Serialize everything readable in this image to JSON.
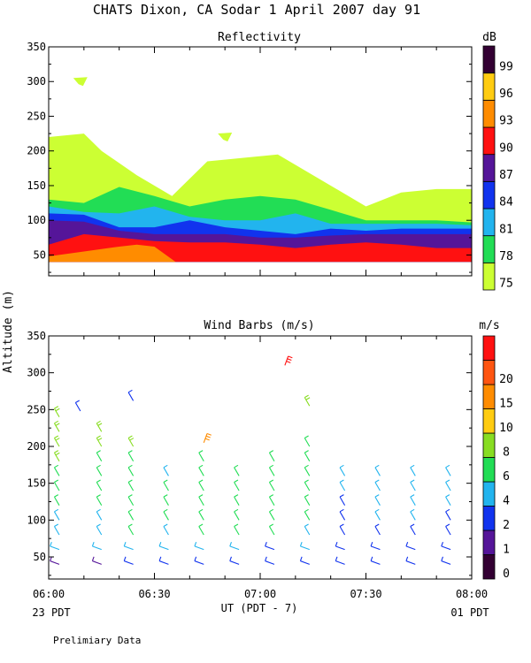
{
  "title": "CHATS Dixon, CA  Sodar   1 April 2007  day  91",
  "footer_note": "Prelimiary Data",
  "y_axis_label": "Altitude (m)",
  "x_axis": {
    "label": "UT  (PDT - 7)",
    "ticks": [
      "06:00",
      "06:30",
      "07:00",
      "07:30",
      "08:00"
    ],
    "left_sublabel": "23 PDT",
    "right_sublabel": "01 PDT"
  },
  "colors": {
    "dB": [
      "#ccff33",
      "#22dd55",
      "#22b4ee",
      "#1133ee",
      "#551599",
      "#ff1111",
      "#ff8c00",
      "#ffcc11",
      "#330033"
    ],
    "ms": [
      "#330033",
      "#551599",
      "#1133ee",
      "#22b4ee",
      "#22dd55",
      "#88dd22",
      "#ffcc11",
      "#ff8c00",
      "#ff5511",
      "#ff1111"
    ]
  },
  "chart_data": [
    {
      "type": "heatmap",
      "title": "Reflectivity",
      "colorbar_label": "dB",
      "colorbar_ticks": [
        "75",
        "78",
        "81",
        "84",
        "87",
        "90",
        "93",
        "96",
        "99"
      ],
      "xlim": [
        0,
        120
      ],
      "ylim": [
        20,
        350
      ],
      "yticks": [
        50,
        100,
        150,
        200,
        250,
        300,
        350
      ],
      "x_unit": "minutes after 06:00 UT",
      "levels": [
        {
          "dB": 75,
          "x": [
            0,
            10,
            15,
            25,
            35,
            45,
            55,
            65,
            80,
            90,
            100,
            110,
            120
          ],
          "top": [
            220,
            225,
            200,
            165,
            135,
            185,
            190,
            195,
            150,
            120,
            140,
            145,
            145
          ]
        },
        {
          "dB": 78,
          "x": [
            0,
            10,
            20,
            30,
            40,
            50,
            60,
            70,
            80,
            90,
            100,
            110,
            120
          ],
          "top": [
            130,
            125,
            148,
            135,
            120,
            130,
            135,
            130,
            115,
            100,
            100,
            100,
            97
          ]
        },
        {
          "dB": 81,
          "x": [
            0,
            10,
            20,
            30,
            40,
            50,
            60,
            70,
            80,
            90,
            100,
            110,
            120
          ],
          "top": [
            120,
            112,
            110,
            120,
            105,
            100,
            100,
            110,
            95,
            95,
            95,
            95,
            93
          ]
        },
        {
          "dB": 84,
          "x": [
            0,
            10,
            20,
            30,
            40,
            50,
            60,
            70,
            80,
            90,
            100,
            110,
            120
          ],
          "top": [
            110,
            108,
            90,
            90,
            100,
            90,
            85,
            80,
            88,
            85,
            88,
            88,
            88
          ]
        },
        {
          "dB": 87,
          "x": [
            0,
            10,
            20,
            30,
            40,
            50,
            60,
            70,
            80,
            90,
            100,
            110,
            120
          ],
          "top": [
            100,
            98,
            85,
            80,
            80,
            80,
            75,
            75,
            78,
            80,
            80,
            80,
            80
          ]
        },
        {
          "dB": 90,
          "x": [
            0,
            10,
            20,
            30,
            40,
            50,
            60,
            70,
            80,
            90,
            100,
            110,
            120
          ],
          "top": [
            65,
            80,
            75,
            70,
            68,
            68,
            65,
            60,
            65,
            68,
            65,
            60,
            60
          ]
        },
        {
          "dB": 93,
          "x": [
            0,
            10,
            20,
            25,
            30,
            36
          ],
          "top": [
            48,
            55,
            62,
            65,
            62,
            40
          ]
        }
      ],
      "islands": [
        {
          "dB": 75,
          "x": 9,
          "y": 300
        },
        {
          "dB": 75,
          "x": 50,
          "y": 220
        }
      ]
    },
    {
      "type": "scatter",
      "title": "Wind Barbs (m/s)",
      "colorbar_label": "m/s",
      "colorbar_ticks": [
        "0",
        "1",
        "2",
        "4",
        "6",
        "8",
        "10",
        "15",
        "20"
      ],
      "xlim": [
        0,
        120
      ],
      "ylim": [
        20,
        350
      ],
      "yticks": [
        50,
        100,
        150,
        200,
        250,
        300,
        350
      ],
      "x_unit": "minutes after 06:00 UT",
      "heights": [
        40,
        60,
        80,
        100,
        120,
        140,
        160,
        180,
        200,
        220,
        240
      ],
      "columns": [
        {
          "x": 3,
          "speeds": [
            1,
            4,
            4,
            4,
            5,
            5,
            5,
            6,
            6,
            6,
            6
          ]
        },
        {
          "x": 15,
          "speeds": [
            1,
            4,
            4,
            4,
            5,
            5,
            5,
            5,
            6,
            6,
            0
          ]
        },
        {
          "x": 24,
          "speeds": [
            3,
            4,
            5,
            5,
            5,
            5,
            5,
            5,
            6,
            0,
            0
          ]
        },
        {
          "x": 34,
          "speeds": [
            3,
            4,
            4,
            5,
            5,
            5,
            4,
            0,
            0,
            0,
            0
          ]
        },
        {
          "x": 44,
          "speeds": [
            3,
            4,
            5,
            5,
            5,
            5,
            5,
            5,
            0,
            0,
            0
          ]
        },
        {
          "x": 54,
          "speeds": [
            2,
            4,
            5,
            5,
            5,
            5,
            5,
            0,
            0,
            0,
            0
          ]
        },
        {
          "x": 64,
          "speeds": [
            2,
            3,
            5,
            5,
            5,
            5,
            5,
            5,
            0,
            0,
            0
          ]
        },
        {
          "x": 74,
          "speeds": [
            2,
            4,
            4,
            5,
            5,
            5,
            5,
            5,
            5,
            0,
            0
          ]
        },
        {
          "x": 84,
          "speeds": [
            3,
            3,
            3,
            3,
            2,
            4,
            4,
            0,
            0,
            0,
            0
          ]
        },
        {
          "x": 94,
          "speeds": [
            3,
            3,
            3,
            4,
            4,
            4,
            4,
            0,
            0,
            0,
            0
          ]
        },
        {
          "x": 104,
          "speeds": [
            2,
            3,
            3,
            4,
            4,
            4,
            4,
            0,
            0,
            0,
            0
          ]
        },
        {
          "x": 114,
          "speeds": [
            2,
            2,
            3,
            3,
            4,
            4,
            4,
            0,
            0,
            0,
            0
          ]
        }
      ],
      "extra_barbs": [
        {
          "x": 9,
          "y": 248,
          "speed": 3
        },
        {
          "x": 24,
          "y": 262,
          "speed": 3
        },
        {
          "x": 44,
          "y": 205,
          "speed": 10
        },
        {
          "x": 67,
          "y": 310,
          "speed": 20
        },
        {
          "x": 74,
          "y": 255,
          "speed": 6
        }
      ]
    }
  ]
}
